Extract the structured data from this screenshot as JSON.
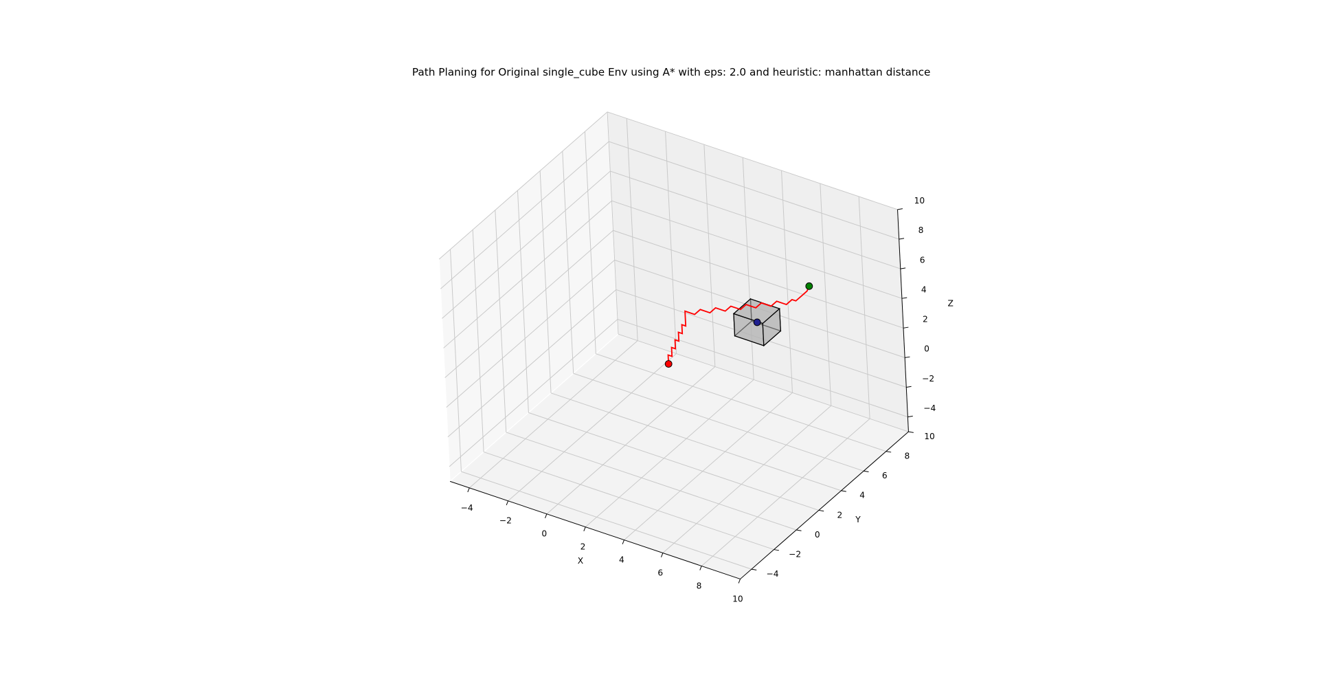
{
  "chart_data": {
    "type": "line3d",
    "title": "Path Planing for Original single_cube Env using A* with eps: 2.0 and heuristic: manhattan distance",
    "xlabel": "X",
    "ylabel": "Y",
    "zlabel": "Z",
    "xlim": [
      -5,
      10
    ],
    "ylim": [
      -5,
      10
    ],
    "zlim": [
      -5,
      10
    ],
    "xticks": [
      {
        "value": -4,
        "label": "−4"
      },
      {
        "value": -2,
        "label": "−2"
      },
      0,
      2,
      4,
      6,
      8,
      10
    ],
    "yticks": [
      {
        "value": -4,
        "label": "−4"
      },
      {
        "value": -2,
        "label": "−2"
      },
      0,
      2,
      4,
      6,
      8,
      10
    ],
    "zticks": [
      {
        "value": -4,
        "label": "−4"
      },
      {
        "value": -2,
        "label": "−2"
      },
      0,
      2,
      4,
      6,
      8,
      10
    ],
    "grid": true,
    "series": [
      {
        "color": "#ff0000",
        "x": [
          2.3,
          2.3,
          2.5,
          2.5,
          2.7,
          2.7,
          2.9,
          2.9,
          3.1,
          3.1,
          3.3,
          3.3,
          3.3,
          3.8,
          3.8,
          4.3,
          4.3,
          4.8,
          4.8,
          5.3,
          5.3,
          5.8,
          5.8,
          6.3,
          6.3,
          6.8,
          6.8,
          7.0,
          7.0,
          7.0,
          7.0
        ],
        "y": [
          2.3,
          2.3,
          2.3,
          2.3,
          2.3,
          2.3,
          2.3,
          2.3,
          2.3,
          2.3,
          2.3,
          2.3,
          2.3,
          2.3,
          2.8,
          2.8,
          3.3,
          3.3,
          3.8,
          3.8,
          4.3,
          4.3,
          4.8,
          4.8,
          5.3,
          5.3,
          5.8,
          5.8,
          6.3,
          6.8,
          7.0
        ],
        "z": [
          1.3,
          1.9,
          1.9,
          2.5,
          2.5,
          3.1,
          3.1,
          3.7,
          3.7,
          4.3,
          4.3,
          4.9,
          5.3,
          5.3,
          5.3,
          5.3,
          5.3,
          5.3,
          5.3,
          5.3,
          5.3,
          5.3,
          5.3,
          5.3,
          5.3,
          5.3,
          5.3,
          5.3,
          5.3,
          5.3,
          5.5
        ]
      }
    ],
    "points": {
      "x": [
        2.3,
        7.0,
        5.25
      ],
      "y": [
        2.3,
        7.0,
        5.25
      ],
      "z": [
        1.3,
        5.5,
        3.45
      ],
      "colors": [
        "#ff0000",
        "#008000",
        "#1f1f8f"
      ]
    },
    "blocks": [
      [
        4.5,
        4.5,
        2.7,
        6.0,
        6.0,
        4.2
      ]
    ],
    "block_color": "#b4b4b4"
  }
}
